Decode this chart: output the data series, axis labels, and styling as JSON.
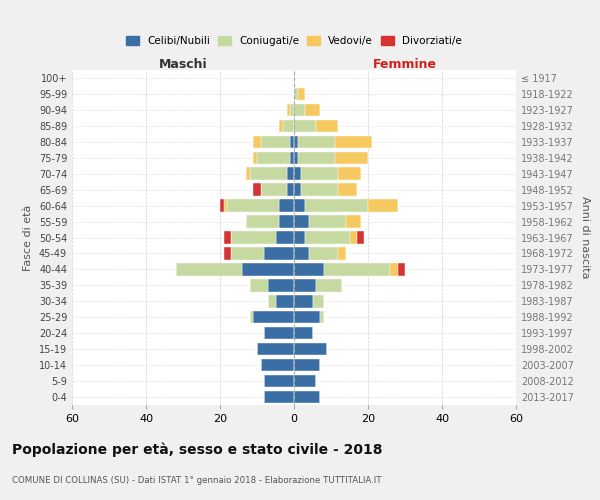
{
  "age_groups": [
    "0-4",
    "5-9",
    "10-14",
    "15-19",
    "20-24",
    "25-29",
    "30-34",
    "35-39",
    "40-44",
    "45-49",
    "50-54",
    "55-59",
    "60-64",
    "65-69",
    "70-74",
    "75-79",
    "80-84",
    "85-89",
    "90-94",
    "95-99",
    "100+"
  ],
  "birth_years": [
    "2013-2017",
    "2008-2012",
    "2003-2007",
    "1998-2002",
    "1993-1997",
    "1988-1992",
    "1983-1987",
    "1978-1982",
    "1973-1977",
    "1968-1972",
    "1963-1967",
    "1958-1962",
    "1953-1957",
    "1948-1952",
    "1943-1947",
    "1938-1942",
    "1933-1937",
    "1928-1932",
    "1923-1927",
    "1918-1922",
    "≤ 1917"
  ],
  "colors": {
    "celibi": "#3a6ea5",
    "coniugati": "#c5d9a0",
    "vedovi": "#f5c860",
    "divorziati": "#d63333"
  },
  "maschi": {
    "celibi": [
      8,
      8,
      9,
      10,
      8,
      11,
      5,
      7,
      14,
      8,
      5,
      4,
      4,
      2,
      2,
      1,
      1,
      0,
      0,
      0,
      0
    ],
    "coniugati": [
      0,
      0,
      0,
      0,
      0,
      1,
      2,
      5,
      18,
      9,
      12,
      9,
      14,
      7,
      10,
      9,
      8,
      3,
      1,
      0,
      0
    ],
    "vedovi": [
      0,
      0,
      0,
      0,
      0,
      0,
      0,
      0,
      0,
      0,
      0,
      0,
      1,
      0,
      1,
      1,
      2,
      1,
      1,
      0,
      0
    ],
    "divorziati": [
      0,
      0,
      0,
      0,
      0,
      0,
      0,
      0,
      0,
      2,
      2,
      0,
      1,
      2,
      0,
      0,
      0,
      0,
      0,
      0,
      0
    ]
  },
  "femmine": {
    "celibi": [
      7,
      6,
      7,
      9,
      5,
      7,
      5,
      6,
      8,
      4,
      3,
      4,
      3,
      2,
      2,
      1,
      1,
      0,
      0,
      0,
      0
    ],
    "coniugati": [
      0,
      0,
      0,
      0,
      0,
      1,
      3,
      7,
      18,
      8,
      12,
      10,
      17,
      10,
      10,
      10,
      10,
      6,
      3,
      1,
      0
    ],
    "vedovi": [
      0,
      0,
      0,
      0,
      0,
      0,
      0,
      0,
      2,
      2,
      2,
      4,
      8,
      5,
      6,
      9,
      10,
      6,
      4,
      2,
      0
    ],
    "divorziati": [
      0,
      0,
      0,
      0,
      0,
      0,
      0,
      0,
      2,
      0,
      2,
      0,
      0,
      0,
      0,
      0,
      0,
      0,
      0,
      0,
      0
    ]
  },
  "title": "Popolazione per età, sesso e stato civile - 2018",
  "subtitle": "COMUNE DI COLLINAS (SU) - Dati ISTAT 1° gennaio 2018 - Elaborazione TUTTITALIA.IT",
  "ylabel": "Fasce di età",
  "ylabel_right": "Anni di nascita",
  "xlabel_left": "Maschi",
  "xlabel_right": "Femmine",
  "xlim": 60,
  "background_color": "#f0f0f0",
  "plot_background": "#ffffff",
  "grid_color": "#cccccc"
}
